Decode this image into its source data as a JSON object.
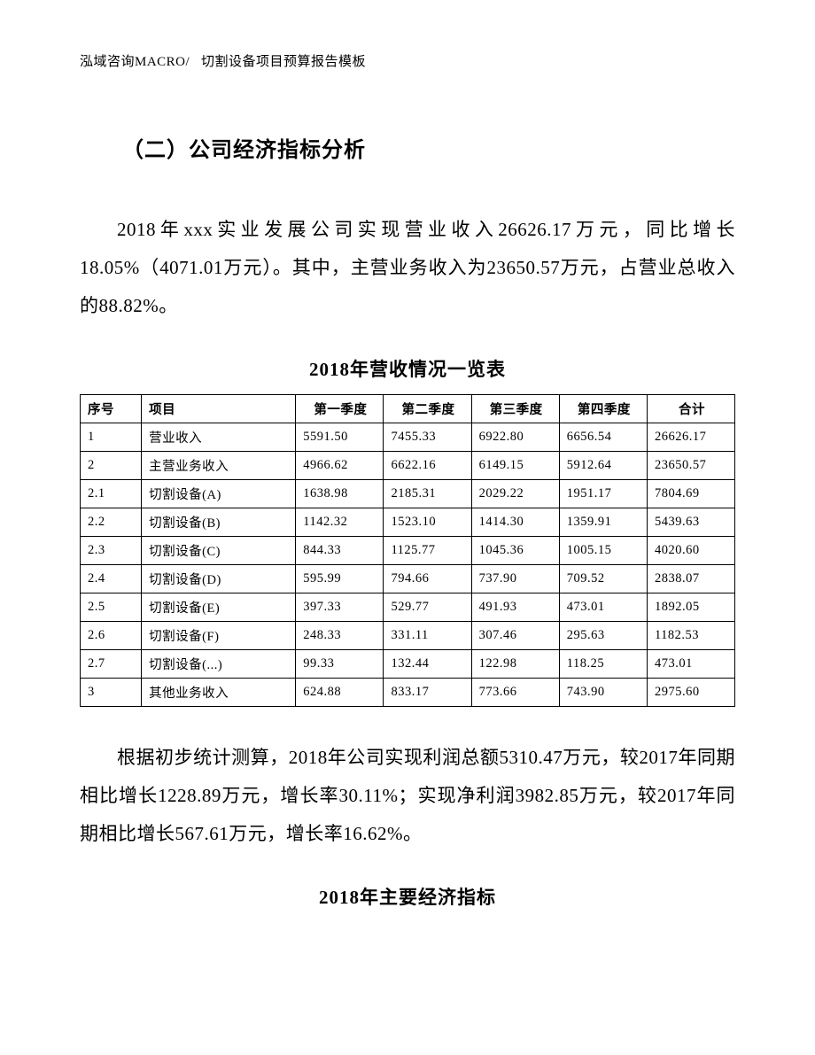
{
  "header": {
    "left": "泓域咨询MACRO/",
    "right": "切割设备项目预算报告模板"
  },
  "section_heading": "（二）公司经济指标分析",
  "para1": "2018年xxx实业发展公司实现营业收入26626.17万元，同比增长18.05%（4071.01万元）。其中，主营业务收入为23650.57万元，占营业总收入的88.82%。",
  "table_title": "2018年营收情况一览表",
  "table": {
    "columns": {
      "seq": "序号",
      "item": "项目",
      "q1": "第一季度",
      "q2": "第二季度",
      "q3": "第三季度",
      "q4": "第四季度",
      "total": "合计"
    },
    "rows": [
      {
        "seq": "1",
        "item": "营业收入",
        "q1": "5591.50",
        "q2": "7455.33",
        "q3": "6922.80",
        "q4": "6656.54",
        "total": "26626.17"
      },
      {
        "seq": "2",
        "item": "主营业务收入",
        "q1": "4966.62",
        "q2": "6622.16",
        "q3": "6149.15",
        "q4": "5912.64",
        "total": "23650.57"
      },
      {
        "seq": "2.1",
        "item": "切割设备(A)",
        "q1": "1638.98",
        "q2": "2185.31",
        "q3": "2029.22",
        "q4": "1951.17",
        "total": "7804.69"
      },
      {
        "seq": "2.2",
        "item": "切割设备(B)",
        "q1": "1142.32",
        "q2": "1523.10",
        "q3": "1414.30",
        "q4": "1359.91",
        "total": "5439.63"
      },
      {
        "seq": "2.3",
        "item": "切割设备(C)",
        "q1": "844.33",
        "q2": "1125.77",
        "q3": "1045.36",
        "q4": "1005.15",
        "total": "4020.60"
      },
      {
        "seq": "2.4",
        "item": "切割设备(D)",
        "q1": "595.99",
        "q2": "794.66",
        "q3": "737.90",
        "q4": "709.52",
        "total": "2838.07"
      },
      {
        "seq": "2.5",
        "item": "切割设备(E)",
        "q1": "397.33",
        "q2": "529.77",
        "q3": "491.93",
        "q4": "473.01",
        "total": "1892.05"
      },
      {
        "seq": "2.6",
        "item": "切割设备(F)",
        "q1": "248.33",
        "q2": "331.11",
        "q3": "307.46",
        "q4": "295.63",
        "total": "1182.53"
      },
      {
        "seq": "2.7",
        "item": "切割设备(...)",
        "q1": "99.33",
        "q2": "132.44",
        "q3": "122.98",
        "q4": "118.25",
        "total": "473.01"
      },
      {
        "seq": "3",
        "item": "其他业务收入",
        "q1": "624.88",
        "q2": "833.17",
        "q3": "773.66",
        "q4": "743.90",
        "total": "2975.60"
      }
    ]
  },
  "para2": "根据初步统计测算，2018年公司实现利润总额5310.47万元，较2017年同期相比增长1228.89万元，增长率30.11%；实现净利润3982.85万元，较2017年同期相比增长567.61万元，增长率16.62%。",
  "second_table_title": "2018年主要经济指标"
}
